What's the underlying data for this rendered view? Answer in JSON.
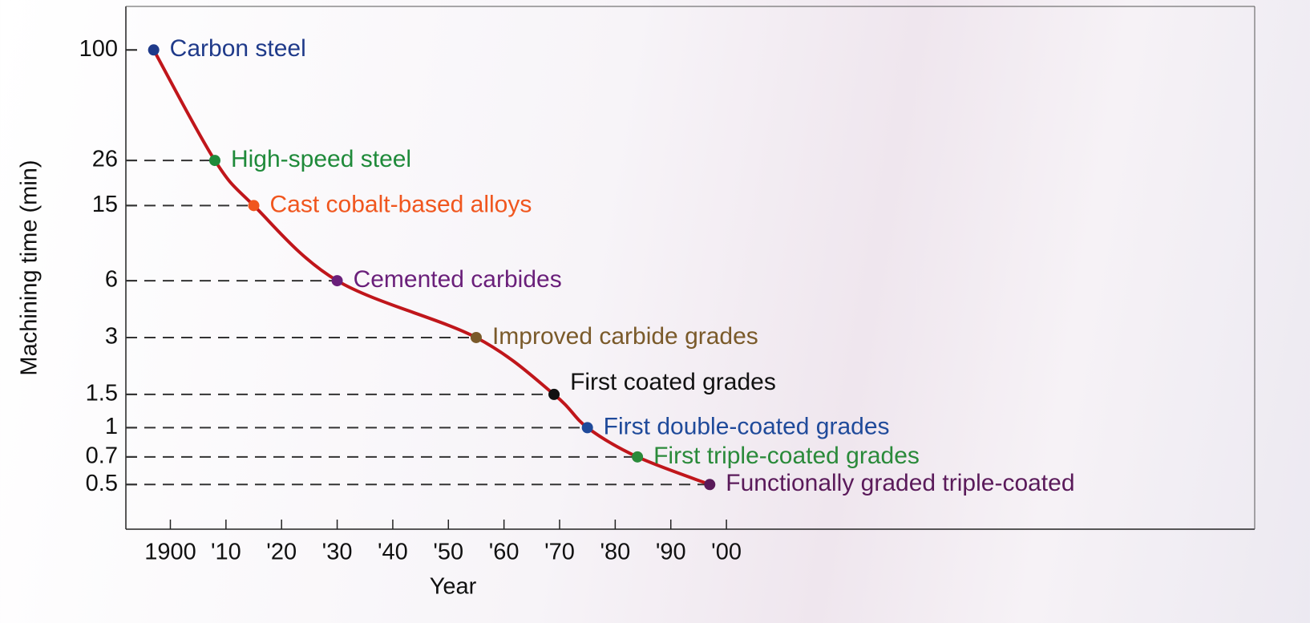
{
  "chart_data": {
    "type": "line",
    "x_label": "Year",
    "y_label": "Machining time (min)",
    "x": [
      1897,
      1908,
      1915,
      1930,
      1955,
      1969,
      1975,
      1984,
      1997
    ],
    "values": [
      100,
      26,
      15,
      6,
      3,
      1.5,
      1,
      0.7,
      0.5
    ],
    "labels": [
      "Carbon steel",
      "High-speed steel",
      "Cast cobalt-based alloys",
      "Cemented carbides",
      "Improved carbide grades",
      "First coated grades",
      "First double-coated grades",
      "First triple-coated grades",
      "Functionally graded triple-coated"
    ],
    "point_colors": [
      "#1f3a8a",
      "#1f8a3a",
      "#f0561e",
      "#6a1f7a",
      "#7a5a2a",
      "#111111",
      "#1f4a9a",
      "#2a8a3a",
      "#5a1a5a"
    ],
    "line_color": "#c0161b",
    "log_y": true,
    "xlim": [
      1892,
      2095
    ],
    "xticks": [
      1900,
      {
        "value": 1910,
        "label": "'10"
      },
      {
        "value": 1920,
        "label": "'20"
      },
      {
        "value": 1930,
        "label": "'30"
      },
      {
        "value": 1940,
        "label": "'40"
      },
      {
        "value": 1950,
        "label": "'50"
      },
      {
        "value": 1960,
        "label": "'60"
      },
      {
        "value": 1970,
        "label": "'70"
      },
      {
        "value": 1980,
        "label": "'80"
      },
      {
        "value": 1990,
        "label": "'90"
      },
      {
        "value": 2000,
        "label": "'00"
      }
    ],
    "ylim": [
      0.29,
      170
    ],
    "yticks": [
      100,
      26,
      15,
      6,
      3,
      1.5,
      1,
      0.7,
      0.5
    ],
    "guide_lines": true
  }
}
